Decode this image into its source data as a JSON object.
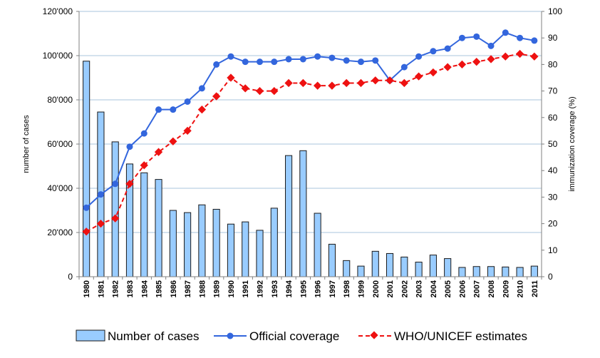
{
  "chart_data": {
    "type": "bar",
    "title": "",
    "categories": [
      "1980",
      "1981",
      "1982",
      "1983",
      "1984",
      "1985",
      "1986",
      "1987",
      "1988",
      "1989",
      "1990",
      "1991",
      "1992",
      "1993",
      "1994",
      "1995",
      "1996",
      "1997",
      "1998",
      "1999",
      "2000",
      "2001",
      "2002",
      "2003",
      "2004",
      "2005",
      "2006",
      "2007",
      "2008",
      "2009",
      "2010",
      "2011"
    ],
    "y_left": {
      "label": "number of cases",
      "range": [
        0,
        120000
      ],
      "ticks": [
        0,
        20000,
        40000,
        60000,
        80000,
        100000,
        120000
      ],
      "tick_labels": [
        "0",
        "20'000",
        "40'000",
        "60'000",
        "80'000",
        "100'000",
        "120'000"
      ]
    },
    "y_right": {
      "label": "immunization coverage (%)",
      "range": [
        0,
        100
      ],
      "ticks": [
        0,
        10,
        20,
        30,
        40,
        50,
        60,
        70,
        80,
        90,
        100
      ],
      "tick_labels": [
        "0",
        "10",
        "20",
        "30",
        "40",
        "50",
        "60",
        "70",
        "80",
        "90",
        "100"
      ]
    },
    "grid": true,
    "legend_position": "bottom",
    "series": [
      {
        "name": "Number of cases",
        "type": "bar",
        "axis": "left",
        "color": "#99ccff",
        "edge_color": "#1a1a1a",
        "values": [
          97500,
          74500,
          61000,
          51000,
          47000,
          44000,
          30000,
          29000,
          32500,
          30500,
          23800,
          24800,
          21000,
          31000,
          54800,
          57000,
          28700,
          14700,
          7300,
          4800,
          11500,
          10500,
          8900,
          6600,
          9800,
          8200,
          4200,
          4600,
          4600,
          4400,
          4200,
          4800
        ]
      },
      {
        "name": "Official coverage",
        "type": "line",
        "axis": "right",
        "color": "#3366dd",
        "marker": "circle",
        "values": [
          26,
          31,
          35,
          49,
          54,
          63,
          63,
          66,
          71,
          80,
          83,
          81,
          81,
          81,
          82,
          82,
          83,
          82.5,
          81.5,
          81,
          81.5,
          74,
          79,
          83,
          85,
          86,
          90,
          90.5,
          87,
          92,
          90,
          89
        ]
      },
      {
        "name": "WHO/UNICEF estimates",
        "type": "line",
        "axis": "right",
        "color": "#ee1111",
        "marker": "diamond",
        "dashed": true,
        "values": [
          17,
          20,
          22,
          35,
          42,
          47,
          51,
          55,
          63,
          68,
          75,
          71,
          70,
          70,
          73,
          73,
          72,
          72,
          73,
          73,
          74,
          74,
          73,
          75.5,
          77,
          79,
          80,
          81,
          82,
          83,
          84,
          83
        ]
      }
    ]
  }
}
